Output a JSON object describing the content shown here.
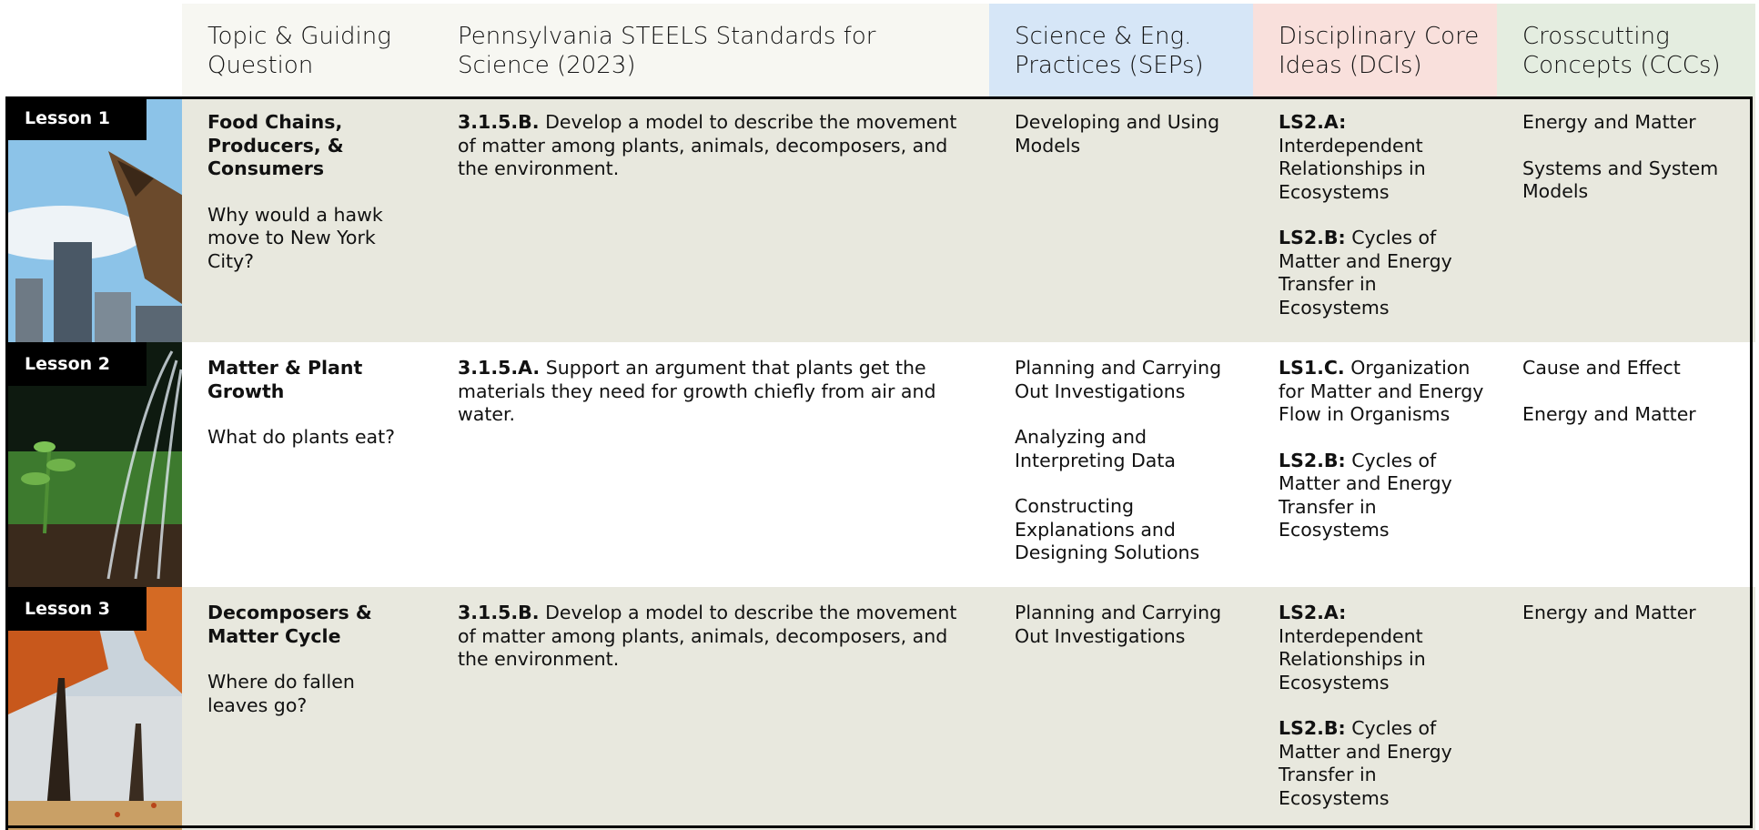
{
  "header": {
    "columns": [
      "Topic & Guiding Question",
      "Pennsylvania STEELS Standards for Science (2023)",
      "Science & Eng. Practices (SEPs)",
      "Disciplinary Core Ideas (DCIs)",
      "Crosscutting Concepts (CCCs)"
    ]
  },
  "rows": [
    {
      "lesson": "Lesson 1",
      "topic": "Food Chains, Producers, & Consumers",
      "question": "Why would a hawk move to New York City?",
      "standard": {
        "code": "3.1.5.B.",
        "text": "Develop a model to describe the movement of matter among plants, animals, decomposers, and the environment."
      },
      "seps": [
        "Developing and Using Models"
      ],
      "dcis": [
        {
          "code": "LS2.A:",
          "text": "Interdependent Relationships in Ecosystems"
        },
        {
          "code": "LS2.B:",
          "text": "Cycles of Matter and Energy Transfer in Ecosystems"
        }
      ],
      "cccs": [
        "Energy and Matter",
        "Systems and System Models"
      ]
    },
    {
      "lesson": "Lesson 2",
      "topic": "Matter & Plant Growth",
      "question": "What do plants eat?",
      "standard": {
        "code": "3.1.5.A.",
        "text": "Support an argument that plants get the materials they need for growth chiefly from air and water."
      },
      "seps": [
        "Planning and Carrying Out Investigations",
        "Analyzing and Interpreting Data",
        "Constructing Explanations and Designing Solutions"
      ],
      "dcis": [
        {
          "code": "LS1.C.",
          "text": "Organization for Matter and Energy Flow in Organisms"
        },
        {
          "code": "LS2.B:",
          "text": "Cycles of Matter and Energy Transfer in Ecosystems"
        }
      ],
      "cccs": [
        "Cause and Effect",
        "Energy and Matter"
      ]
    },
    {
      "lesson": "Lesson 3",
      "topic": "Decomposers & Matter Cycle",
      "question": "Where do fallen leaves go?",
      "standard": {
        "code": "3.1.5.B.",
        "text": "Develop a model to describe the movement of matter among plants, animals, decomposers, and the environment."
      },
      "seps": [
        "Planning and Carrying Out Investigations"
      ],
      "dcis": [
        {
          "code": "LS2.A:",
          "text": "Interdependent Relationships in Ecosystems"
        },
        {
          "code": "LS2.B:",
          "text": "Cycles of Matter and Energy Transfer in Ecosystems"
        }
      ],
      "cccs": [
        "Energy and Matter"
      ]
    }
  ]
}
